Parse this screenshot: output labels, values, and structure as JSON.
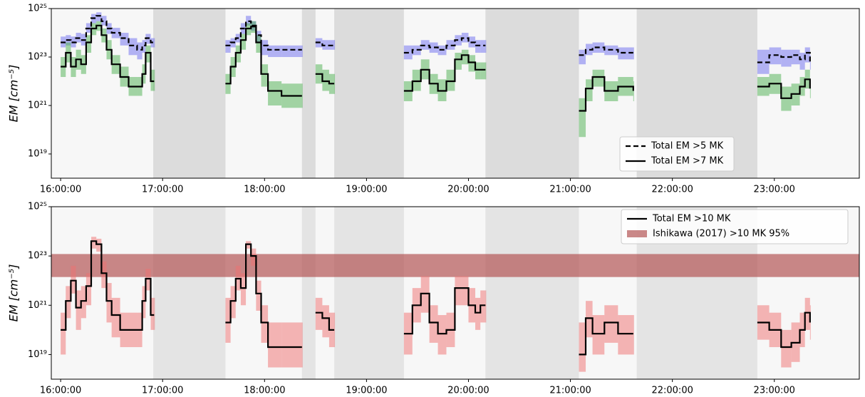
{
  "chart_data": [
    {
      "type": "line",
      "ylabel": "EM [cm⁻⁵]",
      "yscale": "log",
      "ylim": [
        1e+18,
        1e+25
      ],
      "yticks": [
        {
          "value": 1e+19,
          "label": "10¹⁹"
        },
        {
          "value": 1e+21,
          "label": "10²¹"
        },
        {
          "value": 1e+23,
          "label": "10²³"
        },
        {
          "value": 1e+25,
          "label": "10²⁵"
        }
      ],
      "xlim": [
        "15:54:30",
        "23:50:00"
      ],
      "xticks": [
        "16:00:00",
        "17:00:00",
        "18:00:00",
        "19:00:00",
        "20:00:00",
        "21:00:00",
        "22:00:00",
        "23:00:00"
      ],
      "spans": [
        [
          "16:54:30",
          "17:37:00"
        ],
        [
          "18:22:00",
          "18:30:00"
        ],
        [
          "18:41:00",
          "19:22:00"
        ],
        [
          "20:10:00",
          "21:05:00"
        ],
        [
          "21:39:00",
          "22:50:00"
        ]
      ],
      "legend": "lower right",
      "x": [
        "16:00",
        "16:03",
        "16:06",
        "16:09",
        "16:12",
        "16:15",
        "16:18",
        "16:21",
        "16:24",
        "16:27",
        "16:30",
        "16:35",
        "16:40",
        "16:45",
        "16:48",
        "16:50",
        "16:53",
        "16:55",
        "17:00",
        "17:37",
        "17:40",
        "17:43",
        "17:46",
        "17:49",
        "17:52",
        "17:55",
        "17:58",
        "18:02",
        "18:10",
        "18:22",
        "18:26",
        "18:30",
        "18:34",
        "18:38",
        "18:41",
        "19:00",
        "19:22",
        "19:27",
        "19:32",
        "19:37",
        "19:42",
        "19:47",
        "19:52",
        "19:56",
        "20:00",
        "20:04",
        "20:07",
        "20:10",
        "20:30",
        "21:05",
        "21:09",
        "21:13",
        "21:20",
        "21:28",
        "21:37",
        "22:00",
        "22:50",
        "22:57",
        "23:04",
        "23:10",
        "23:15",
        "23:18",
        "23:21"
      ],
      "series": [
        {
          "name": "Total EM >5 MK",
          "color": "#000000",
          "linestyle": "dashed",
          "band_color": "#6b6bf0",
          "values": [
            4e+23,
            5e+23,
            4e+23,
            6e+23,
            5e+23,
            1.5e+24,
            4e+24,
            5e+24,
            3e+24,
            1.5e+24,
            1e+24,
            6e+23,
            3e+23,
            2e+23,
            3e+23,
            6e+23,
            4e+23,
            4e+23,
            null,
            3e+23,
            4e+23,
            6e+23,
            1.5e+24,
            3e+24,
            2e+24,
            8e+23,
            3e+23,
            2e+23,
            2e+23,
            2e+23,
            null,
            4e+23,
            3e+23,
            3e+23,
            3e+23,
            null,
            1.5e+23,
            2e+23,
            3e+23,
            2.5e+23,
            2e+23,
            3e+23,
            5e+23,
            6e+23,
            4e+23,
            3e+23,
            3e+23,
            3e+23,
            null,
            1.2e+23,
            2e+23,
            2.5e+23,
            2e+23,
            1.5e+23,
            1.5e+23,
            null,
            6e+22,
            1.2e+23,
            1e+23,
            1.2e+23,
            8e+22,
            1.5e+23,
            6e+22
          ],
          "upper": [
            7e+23,
            8e+23,
            7e+23,
            1e+24,
            9e+23,
            2.5e+24,
            6e+24,
            7e+24,
            5e+24,
            2.5e+24,
            1.6e+24,
            1e+24,
            6e+23,
            4e+23,
            5e+23,
            9e+23,
            6e+23,
            6e+23,
            null,
            5e+23,
            6e+23,
            9e+23,
            2.5e+24,
            5e+24,
            3e+24,
            1.2e+24,
            5e+23,
            3e+23,
            3e+23,
            3e+23,
            null,
            6e+23,
            5e+23,
            5e+23,
            5e+23,
            null,
            3e+23,
            3e+23,
            5e+23,
            4e+23,
            3e+23,
            5e+23,
            8e+23,
            1e+24,
            7e+23,
            5e+23,
            5e+23,
            5e+23,
            null,
            2e+23,
            3.5e+23,
            4e+23,
            3e+23,
            2.5e+23,
            2.5e+23,
            null,
            2e+23,
            2.5e+23,
            2e+23,
            2e+23,
            1.5e+23,
            2.5e+23,
            1.2e+23
          ],
          "lower": [
            2.5e+23,
            3e+23,
            2.5e+23,
            4e+23,
            3e+23,
            1e+24,
            2.5e+24,
            3e+24,
            2e+24,
            9e+23,
            6e+23,
            3e+23,
            1.2e+23,
            8e+22,
            1.5e+23,
            3.5e+23,
            2.5e+23,
            2.5e+23,
            null,
            1.5e+23,
            2.5e+23,
            4e+23,
            9e+23,
            2e+24,
            1.2e+24,
            4e+23,
            1.2e+23,
            1e+23,
            1e+23,
            1e+23,
            null,
            2.5e+23,
            2e+23,
            2e+23,
            2e+23,
            null,
            8e+22,
            1.2e+23,
            2e+23,
            1.5e+23,
            1.2e+23,
            2e+23,
            3e+23,
            4e+23,
            2.5e+23,
            1.5e+23,
            1.5e+23,
            1.5e+23,
            null,
            5e+22,
            1.2e+23,
            1.5e+23,
            1.2e+23,
            8e+22,
            8e+22,
            null,
            2e+22,
            5e+22,
            4e+22,
            5e+22,
            3e+22,
            6e+22,
            3e+22
          ]
        },
        {
          "name": "Total EM >7 MK",
          "color": "#000000",
          "linestyle": "solid",
          "band_color": "#4caf50",
          "values": [
            4e+22,
            1.5e+23,
            4e+22,
            8e+22,
            5e+22,
            4e+23,
            1.5e+24,
            2e+24,
            8e+23,
            2e+23,
            5e+22,
            1.5e+22,
            6e+21,
            6e+21,
            2e+22,
            1.5e+23,
            1e+22,
            1e+22,
            null,
            8e+21,
            4e+22,
            1.5e+23,
            5e+23,
            1.5e+24,
            1.8e+24,
            4e+23,
            2e+22,
            4e+21,
            2.5e+21,
            2.5e+21,
            null,
            2e+22,
            1e+22,
            8e+21,
            8e+21,
            null,
            4e+21,
            1e+22,
            3e+22,
            8e+21,
            4e+21,
            1e+22,
            8e+22,
            1.2e+23,
            6e+22,
            3e+22,
            3e+22,
            3e+22,
            null,
            6e+20,
            5e+21,
            1.5e+22,
            4e+21,
            6e+21,
            4e+21,
            null,
            6e+21,
            8e+21,
            2e+21,
            3e+21,
            6e+21,
            1.2e+22,
            5e+21
          ],
          "upper": [
            1e+23,
            4e+23,
            1e+23,
            2e+23,
            1.2e+23,
            8e+23,
            2.5e+24,
            3e+24,
            1.5e+24,
            5e+23,
            1.2e+23,
            4e+22,
            1.5e+22,
            1.5e+22,
            5e+22,
            3e+23,
            3e+22,
            3e+22,
            null,
            2e+22,
            1e+23,
            3e+23,
            9e+23,
            2.5e+24,
            3e+24,
            8e+23,
            5e+22,
            1e+22,
            8e+21,
            8e+21,
            null,
            5e+22,
            3e+22,
            2e+22,
            2e+22,
            null,
            1e+22,
            3e+22,
            8e+22,
            2e+22,
            1.2e+22,
            3e+22,
            1.5e+23,
            2e+23,
            1.2e+23,
            6e+22,
            6e+22,
            6e+22,
            null,
            2e+21,
            1.2e+22,
            3e+22,
            1e+22,
            1.5e+22,
            1e+22,
            null,
            1.5e+22,
            2e+22,
            6e+21,
            8e+21,
            1.5e+22,
            3e+22,
            1.2e+22
          ],
          "lower": [
            1.5e+22,
            6e+22,
            1.5e+22,
            3e+22,
            2e+22,
            1.5e+23,
            8e+23,
            1.2e+24,
            4e+23,
            8e+22,
            2e+22,
            6e+21,
            2.5e+21,
            2.5e+21,
            8e+21,
            6e+22,
            4e+21,
            4e+21,
            null,
            3e+21,
            1.5e+22,
            6e+22,
            2e+23,
            8e+23,
            1e+24,
            1.5e+23,
            6e+21,
            1e+21,
            8e+20,
            8e+20,
            null,
            8e+21,
            4e+21,
            3e+21,
            3e+21,
            null,
            1.5e+21,
            4e+21,
            1.2e+22,
            3e+21,
            1.5e+21,
            4e+21,
            3e+22,
            5e+22,
            2.5e+22,
            1.2e+22,
            1.2e+22,
            1.2e+22,
            null,
            5e+19,
            1.5e+21,
            6e+21,
            1.5e+21,
            2.5e+21,
            1.5e+21,
            null,
            2.5e+21,
            3e+21,
            6e+20,
            1e+21,
            2.5e+21,
            5e+21,
            2e+21
          ]
        }
      ]
    },
    {
      "type": "line",
      "ylabel": "EM [cm⁻⁵]",
      "yscale": "log",
      "ylim": [
        1e+18,
        1e+25
      ],
      "yticks": [
        {
          "value": 1e+19,
          "label": "10¹⁹"
        },
        {
          "value": 1e+21,
          "label": "10²¹"
        },
        {
          "value": 1e+23,
          "label": "10²³"
        },
        {
          "value": 1e+25,
          "label": "10²⁵"
        }
      ],
      "xlim": [
        "15:54:30",
        "23:50:00"
      ],
      "xticks": [
        "16:00:00",
        "17:00:00",
        "18:00:00",
        "19:00:00",
        "20:00:00",
        "21:00:00",
        "22:00:00",
        "23:00:00"
      ],
      "spans": [
        [
          "16:54:30",
          "17:37:00"
        ],
        [
          "18:22:00",
          "18:30:00"
        ],
        [
          "18:41:00",
          "19:22:00"
        ],
        [
          "20:10:00",
          "21:05:00"
        ],
        [
          "21:39:00",
          "22:50:00"
        ]
      ],
      "legend": "upper right",
      "bands": [
        {
          "name": "Ishikawa (2017) >10 MK 95%",
          "color": "#b45555",
          "range": [
            1.4e+22,
            1.2e+23
          ]
        }
      ],
      "x": [
        "16:00",
        "16:03",
        "16:06",
        "16:09",
        "16:12",
        "16:15",
        "16:18",
        "16:21",
        "16:24",
        "16:27",
        "16:30",
        "16:35",
        "16:40",
        "16:45",
        "16:48",
        "16:50",
        "16:53",
        "16:55",
        "17:00",
        "17:37",
        "17:40",
        "17:43",
        "17:46",
        "17:49",
        "17:52",
        "17:55",
        "17:58",
        "18:02",
        "18:10",
        "18:22",
        "18:26",
        "18:30",
        "18:34",
        "18:38",
        "18:41",
        "19:00",
        "19:22",
        "19:27",
        "19:32",
        "19:37",
        "19:42",
        "19:47",
        "19:52",
        "19:56",
        "20:00",
        "20:04",
        "20:07",
        "20:10",
        "20:30",
        "21:05",
        "21:09",
        "21:13",
        "21:20",
        "21:28",
        "21:37",
        "22:00",
        "22:50",
        "22:57",
        "23:04",
        "23:10",
        "23:15",
        "23:18",
        "23:21"
      ],
      "series": [
        {
          "name": "Total EM >10 MK",
          "color": "#000000",
          "linestyle": "solid",
          "band_color": "#f07070",
          "values": [
            1e+20,
            1.5e+21,
            1e+22,
            8e+20,
            1.5e+21,
            6e+21,
            4e+23,
            3e+23,
            2e+22,
            1.5e+21,
            4e+20,
            1e+20,
            1e+20,
            1e+20,
            1.5e+21,
            1.2e+22,
            4e+20,
            4e+20,
            null,
            2e+20,
            1.5e+21,
            1.2e+22,
            5e+21,
            3e+23,
            1e+23,
            3e+21,
            2e+20,
            2e+19,
            2e+19,
            2e+19,
            null,
            5e+20,
            3e+20,
            1e+20,
            1e+20,
            null,
            7e+19,
            1e+21,
            3e+21,
            2e+20,
            7e+19,
            1e+20,
            5e+21,
            5e+21,
            1e+21,
            5e+20,
            1e+21,
            1e+21,
            null,
            1e+19,
            3e+20,
            7e+19,
            2e+20,
            7e+19,
            7e+19,
            null,
            2e+20,
            1e+20,
            2e+19,
            3e+19,
            1e+20,
            5e+20,
            2e+20
          ],
          "upper": [
            5e+20,
            6e+21,
            4e+22,
            4e+21,
            6e+21,
            2e+22,
            6e+23,
            5e+23,
            6e+22,
            8e+21,
            2e+21,
            5e+20,
            5e+20,
            5e+20,
            6e+21,
            3e+22,
            2e+21,
            2e+21,
            null,
            2e+21,
            6e+21,
            4e+22,
            2e+22,
            4e+23,
            2e+23,
            1e+22,
            1e+21,
            2e+20,
            2e+20,
            2e+20,
            null,
            2e+21,
            1e+21,
            5e+20,
            5e+20,
            null,
            5e+20,
            5e+21,
            1.5e+22,
            1e+21,
            4e+20,
            5e+20,
            1.5e+22,
            1.5e+22,
            5e+21,
            2e+21,
            4e+21,
            4e+21,
            null,
            2e+20,
            1.5e+21,
            4e+20,
            1e+21,
            4e+20,
            4e+20,
            null,
            1e+21,
            5e+20,
            1e+20,
            2e+20,
            5e+20,
            2e+21,
            1e+21
          ],
          "lower": [
            1e+19,
            3e+20,
            3e+21,
            1e+20,
            3e+20,
            1e+21,
            2e+23,
            1.5e+23,
            5e+21,
            2e+20,
            5e+19,
            2e+19,
            2e+19,
            2e+19,
            3e+20,
            4e+21,
            1e+20,
            1e+20,
            null,
            3e+19,
            3e+20,
            4e+21,
            1e+21,
            2e+23,
            4e+22,
            6e+20,
            3e+19,
            3e+18,
            3e+18,
            3e+18,
            null,
            1e+20,
            5e+19,
            2e+19,
            2e+19,
            null,
            1e+19,
            2e+20,
            5e+20,
            3e+19,
            1e+19,
            2e+19,
            1e+21,
            1e+21,
            2e+20,
            1e+20,
            2e+20,
            2e+20,
            null,
            2e+18,
            5e+19,
            1e+19,
            3e+19,
            1e+19,
            1e+19,
            null,
            4e+19,
            2e+19,
            3e+18,
            5e+18,
            2e+19,
            1e+20,
            4e+19
          ]
        }
      ]
    }
  ]
}
